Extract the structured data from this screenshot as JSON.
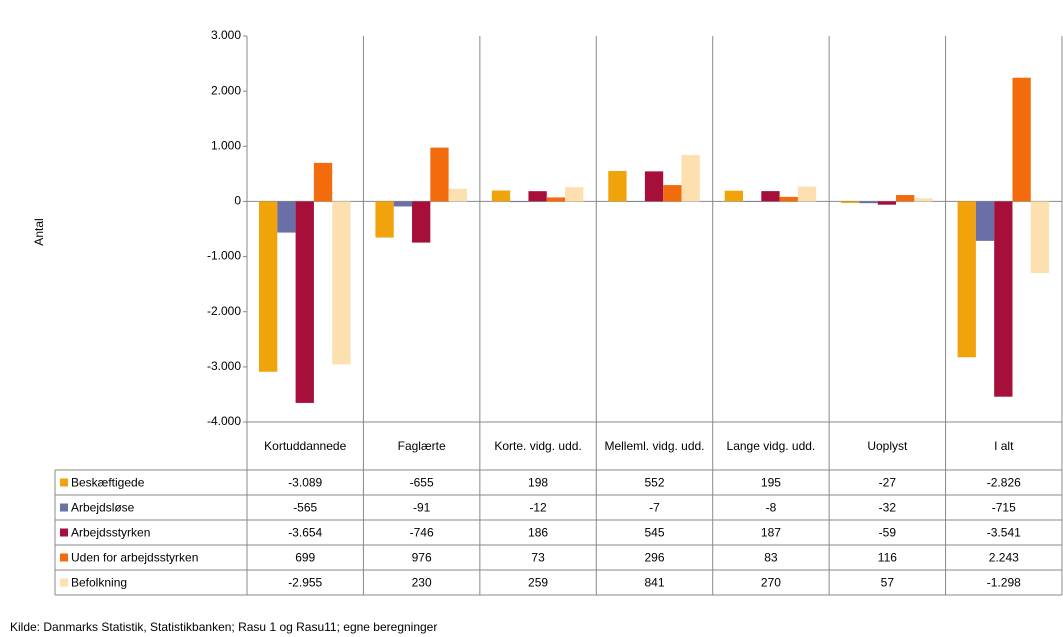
{
  "chart_data": {
    "type": "bar",
    "ylabel": "Antal",
    "source": "Kilde: Danmarks Statistik, Statistikbanken; Rasu 1 og Rasu11; egne beregninger",
    "categories": [
      "Kortuddannede",
      "Faglærte",
      "Korte. vidg. udd.",
      "Melleml. vidg. udd.",
      "Lange vidg. udd.",
      "Uoplyst",
      "I alt"
    ],
    "series": [
      {
        "name": "Beskæftigede",
        "color": "#f0a30a",
        "values": [
          -3089,
          -655,
          198,
          552,
          195,
          -27,
          -2826
        ],
        "value_labels": [
          "-3.089",
          "-655",
          "198",
          "552",
          "195",
          "-27",
          "-2.826"
        ]
      },
      {
        "name": "Arbejdsløse",
        "color": "#6b6fa8",
        "values": [
          -565,
          -91,
          -12,
          -7,
          -8,
          -32,
          -715
        ],
        "value_labels": [
          "-565",
          "-91",
          "-12",
          "-7",
          "-8",
          "-32",
          "-715"
        ]
      },
      {
        "name": "Arbejdsstyrken",
        "color": "#a50f3a",
        "values": [
          -3654,
          -746,
          186,
          545,
          187,
          -59,
          -3541
        ],
        "value_labels": [
          "-3.654",
          "-746",
          "186",
          "545",
          "187",
          "-59",
          "-3.541"
        ]
      },
      {
        "name": "Uden for arbejdsstyrken",
        "color": "#f26b0c",
        "values": [
          699,
          976,
          73,
          296,
          83,
          116,
          2243
        ],
        "value_labels": [
          "699",
          "976",
          "73",
          "296",
          "83",
          "116",
          "2.243"
        ]
      },
      {
        "name": "Befolkning",
        "color": "#fde0b0",
        "values": [
          -2955,
          230,
          259,
          841,
          270,
          57,
          -1298
        ],
        "value_labels": [
          "-2.955",
          "230",
          "259",
          "841",
          "270",
          "57",
          "-1.298"
        ]
      }
    ],
    "ylim": [
      -4000,
      3000
    ],
    "yticks": [
      {
        "value": -4000,
        "label": "-4.000"
      },
      {
        "value": -3000,
        "label": "-3.000"
      },
      {
        "value": -2000,
        "label": "-2.000"
      },
      {
        "value": -1000,
        "label": "-1.000"
      },
      0,
      {
        "value": 1000,
        "label": "1.000"
      },
      {
        "value": 2000,
        "label": "2.000"
      },
      {
        "value": 3000,
        "label": "3.000"
      }
    ]
  }
}
